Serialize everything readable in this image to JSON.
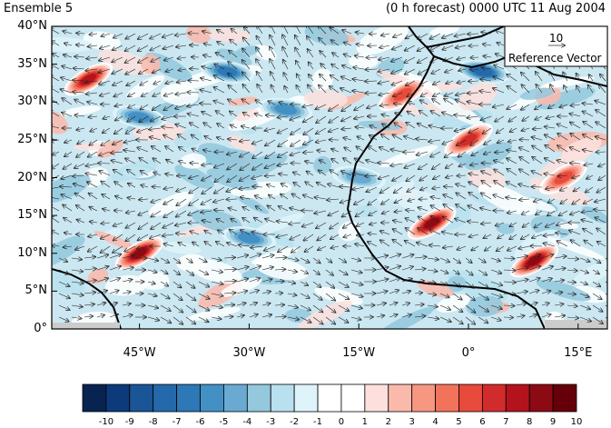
{
  "header": {
    "left_title": "Ensemble 5",
    "right_title": "(0 h forecast) 0000 UTC 11 Aug 2004"
  },
  "map": {
    "lon_range": [
      -57,
      19
    ],
    "lat_range": [
      0,
      40
    ],
    "y_ticks": [
      "40°N",
      "35°N",
      "30°N",
      "25°N",
      "20°N",
      "15°N",
      "10°N",
      "5°N",
      "0°"
    ],
    "x_ticks": [
      "45°W",
      "30°W",
      "15°W",
      "0°",
      "15°E"
    ],
    "reference_vector": {
      "value": "10",
      "label": "Reference Vector"
    },
    "features": [
      {
        "name": "positive anomaly",
        "lon": -52,
        "lat": 33,
        "value": 8
      },
      {
        "name": "positive anomaly",
        "lon": -45,
        "lat": 10,
        "value": 9
      },
      {
        "name": "positive anomaly",
        "lon": -5,
        "lat": 14,
        "value": 9
      },
      {
        "name": "positive anomaly",
        "lon": 9,
        "lat": 9,
        "value": 9
      },
      {
        "name": "positive anomaly",
        "lon": 0,
        "lat": 25,
        "value": 7
      },
      {
        "name": "positive anomaly",
        "lon": -9,
        "lat": 31,
        "value": 6
      },
      {
        "name": "positive anomaly",
        "lon": 13,
        "lat": 20,
        "value": 6
      },
      {
        "name": "negative anomaly",
        "lon": -33,
        "lat": 34,
        "value": -6
      },
      {
        "name": "negative anomaly",
        "lon": -25,
        "lat": 29,
        "value": -5
      },
      {
        "name": "negative anomaly",
        "lon": -45,
        "lat": 28,
        "value": -5
      },
      {
        "name": "negative anomaly",
        "lon": 2,
        "lat": 34,
        "value": -7
      },
      {
        "name": "negative anomaly",
        "lon": -30,
        "lat": 12,
        "value": -5
      },
      {
        "name": "negative anomaly",
        "lon": -15,
        "lat": 20,
        "value": -4
      }
    ]
  },
  "colorbar": {
    "ticks": [
      "-10",
      "-9",
      "-8",
      "-7",
      "-6",
      "-5",
      "-4",
      "-3",
      "-2",
      "-1",
      "0",
      "1",
      "2",
      "3",
      "4",
      "5",
      "6",
      "7",
      "8",
      "9",
      "10"
    ],
    "colors": [
      "#08234f",
      "#0c3a7a",
      "#1a5596",
      "#2469ab",
      "#2d78b6",
      "#4390c4",
      "#6aaad2",
      "#93c8dd",
      "#b9e0ee",
      "#dff3fa",
      "#ffffff",
      "#ffffff",
      "#fde0dd",
      "#fbb9ac",
      "#f79782",
      "#f2735c",
      "#e84a3c",
      "#d22b2b",
      "#b4131d",
      "#8c0a14",
      "#650008"
    ]
  }
}
